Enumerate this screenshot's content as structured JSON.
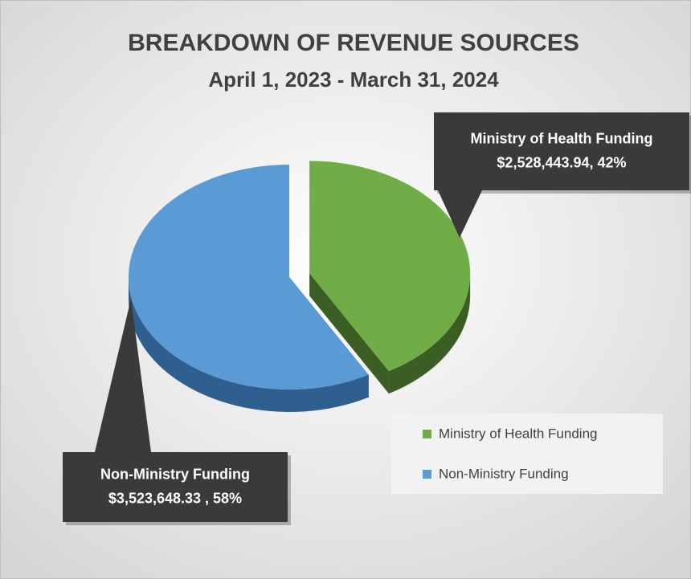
{
  "chart_data": {
    "type": "pie",
    "title": "BREAKDOWN OF REVENUE SOURCES",
    "subtitle": "April 1, 2023 - March 31, 2024",
    "categories": [
      "Ministry of Health Funding",
      "Non-Ministry Funding"
    ],
    "values": [
      2528443.94,
      3523648.33
    ],
    "value_labels": [
      "$2,528,443.94, 42%",
      "$3,523,648.33 , 58%"
    ],
    "colors": [
      "#70ad47",
      "#5b9bd5"
    ],
    "side_colors": [
      "#3b5e25",
      "#2f5f8e"
    ],
    "exploded": [
      true,
      false
    ],
    "legend": "bottom-right"
  }
}
